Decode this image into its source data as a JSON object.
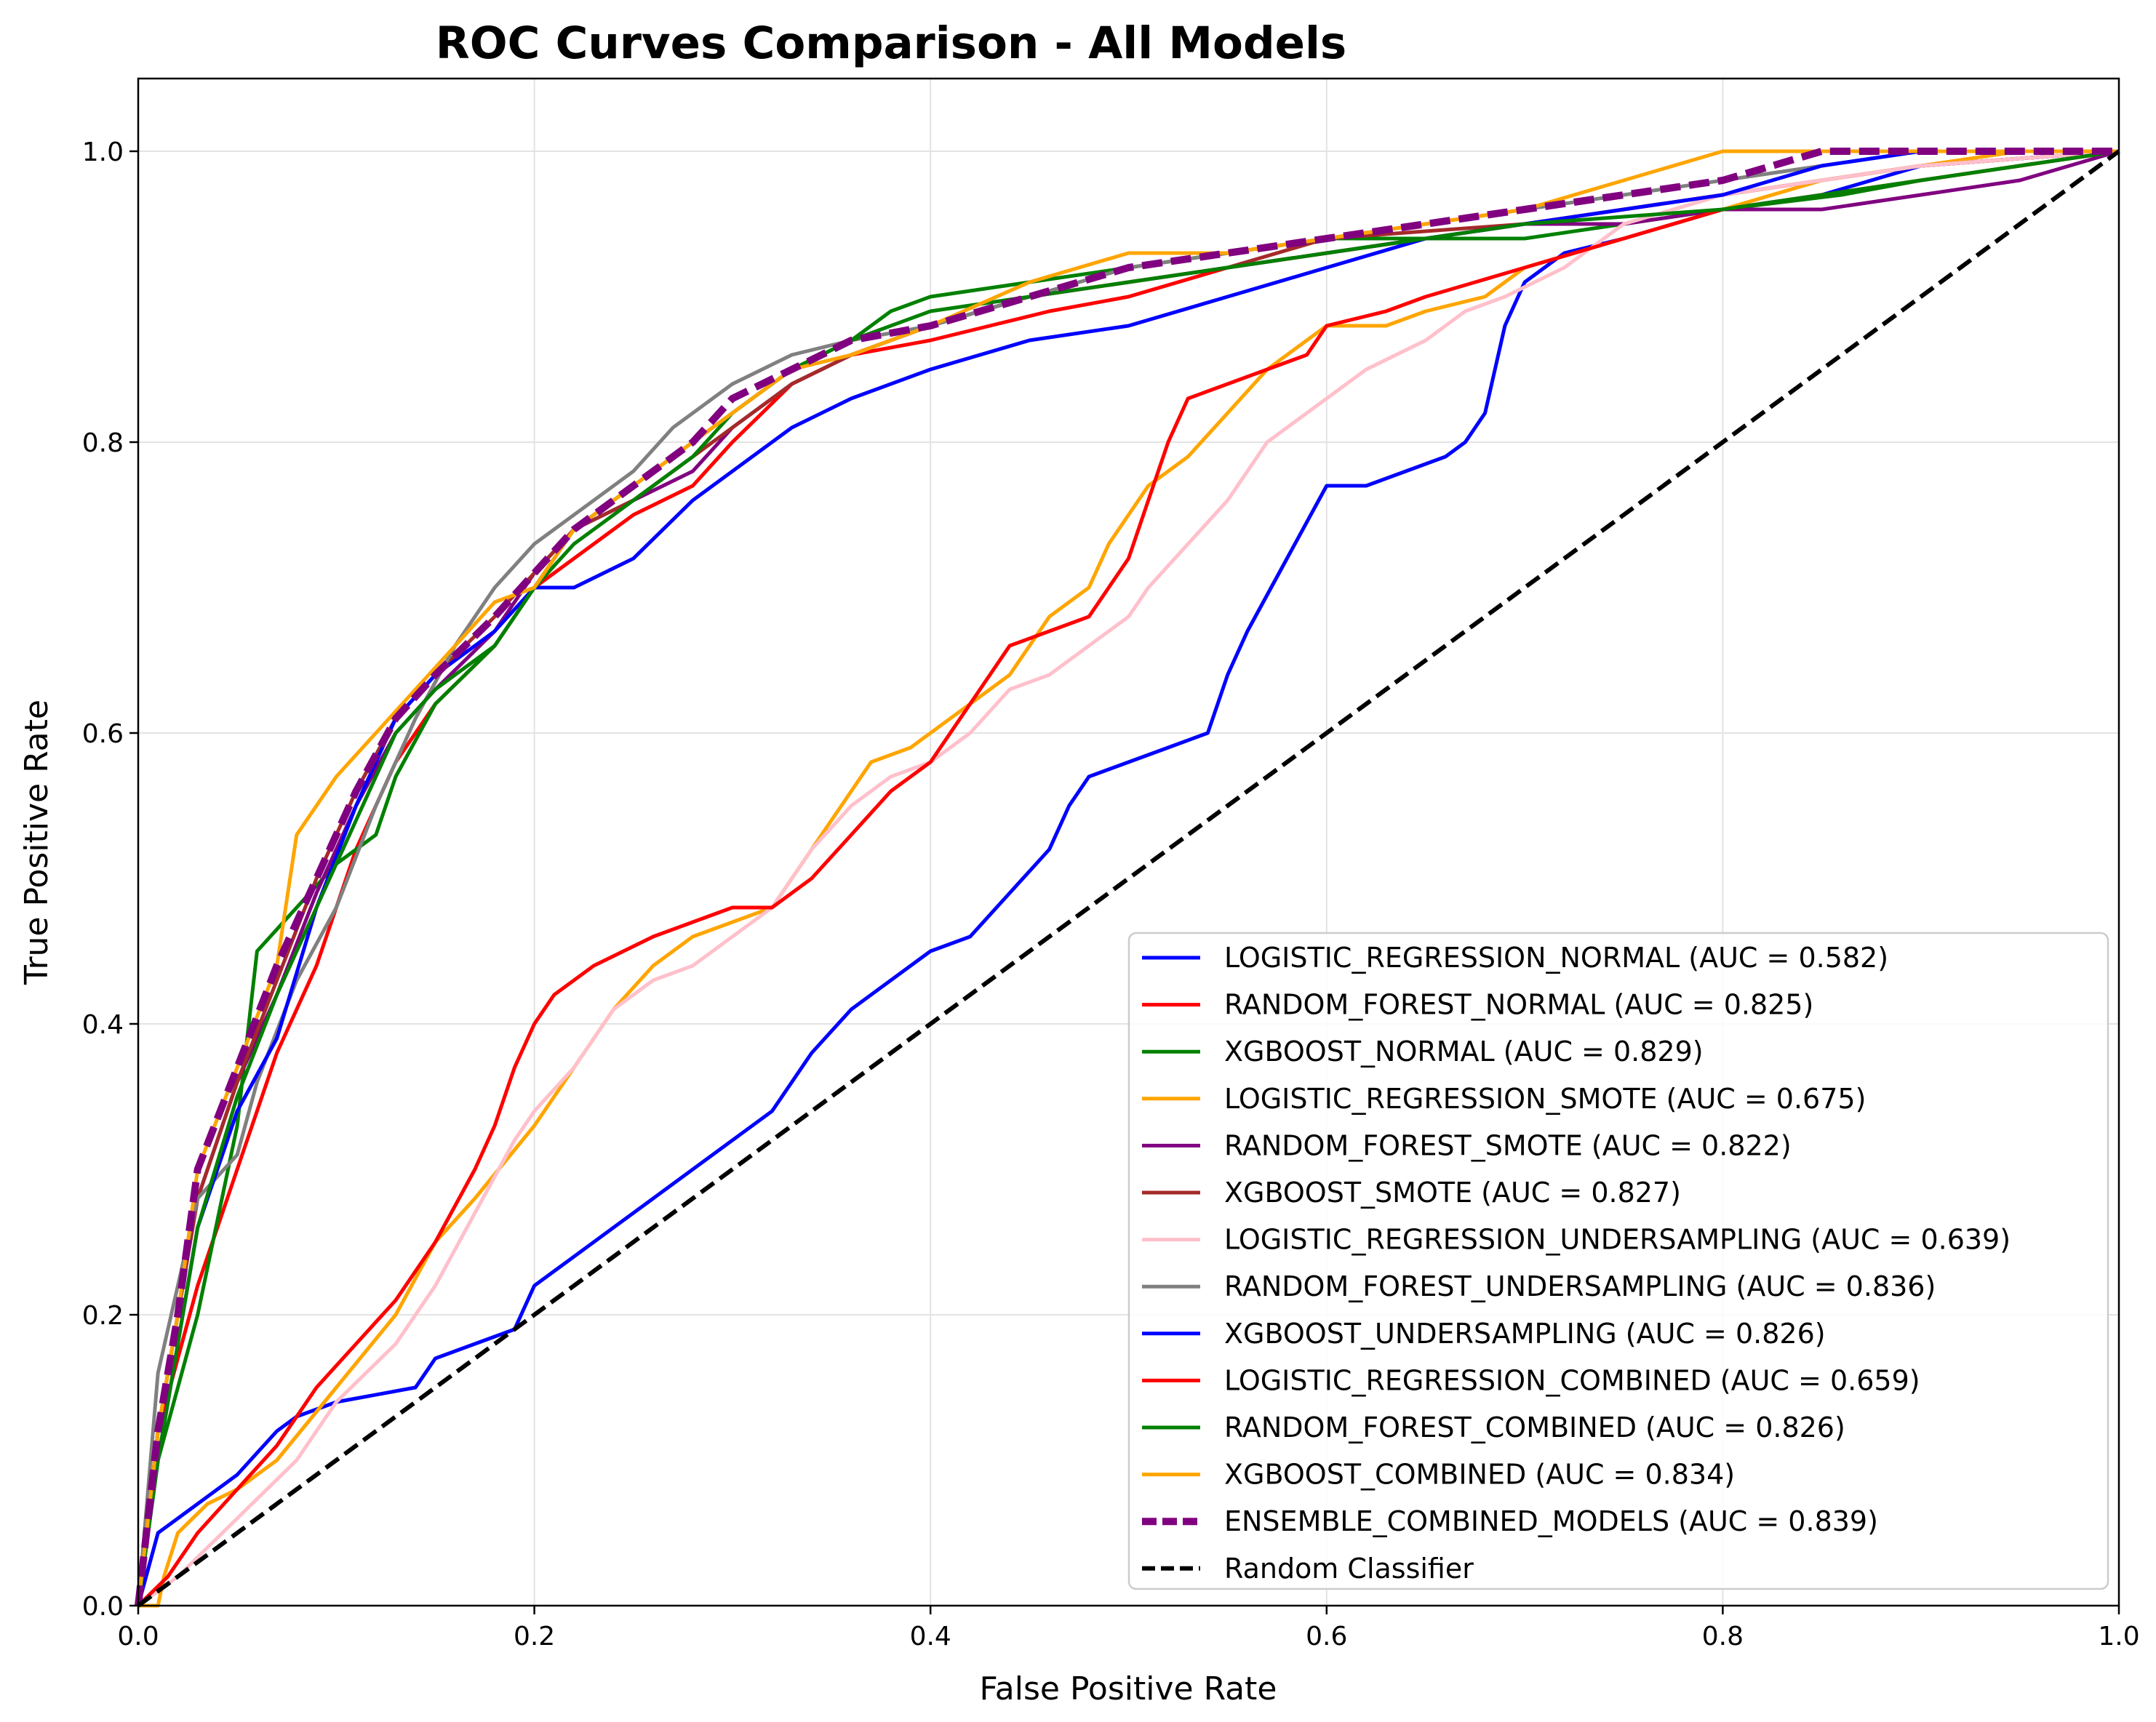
{
  "chart_data": {
    "type": "line",
    "title": "ROC Curves Comparison - All Models",
    "xlabel": "False Positive Rate",
    "ylabel": "True Positive Rate",
    "xlim": [
      0,
      1
    ],
    "ylim": [
      0,
      1.05
    ],
    "xticks": [
      0.0,
      0.2,
      0.4,
      0.6,
      0.8,
      1.0
    ],
    "yticks": [
      0.0,
      0.2,
      0.4,
      0.6,
      0.8,
      1.0
    ],
    "xtick_labels": [
      "0.0",
      "0.2",
      "0.4",
      "0.6",
      "0.8",
      "1.0"
    ],
    "ytick_labels": [
      "0.0",
      "0.2",
      "0.4",
      "0.6",
      "0.8",
      "1.0"
    ],
    "grid": true,
    "legend_position": "lower-right",
    "series": [
      {
        "name": "LOGISTIC_REGRESSION_NORMAL (AUC = 0.582)",
        "color": "#0000ff",
        "dash": "solid",
        "x": [
          0,
          0.01,
          0.02,
          0.03,
          0.05,
          0.07,
          0.08,
          0.1,
          0.14,
          0.15,
          0.17,
          0.19,
          0.2,
          0.22,
          0.24,
          0.26,
          0.28,
          0.3,
          0.32,
          0.33,
          0.34,
          0.36,
          0.38,
          0.4,
          0.42,
          0.44,
          0.46,
          0.47,
          0.48,
          0.5,
          0.52,
          0.54,
          0.55,
          0.56,
          0.58,
          0.6,
          0.62,
          0.64,
          0.66,
          0.67,
          0.68,
          0.69,
          0.7,
          0.72,
          0.75,
          0.8,
          0.85,
          0.9,
          1.0
        ],
        "y": [
          0,
          0.05,
          0.06,
          0.07,
          0.09,
          0.12,
          0.13,
          0.14,
          0.15,
          0.17,
          0.18,
          0.19,
          0.22,
          0.24,
          0.26,
          0.28,
          0.3,
          0.32,
          0.34,
          0.36,
          0.38,
          0.41,
          0.43,
          0.45,
          0.46,
          0.49,
          0.52,
          0.55,
          0.57,
          0.58,
          0.59,
          0.6,
          0.64,
          0.67,
          0.72,
          0.77,
          0.77,
          0.78,
          0.79,
          0.8,
          0.82,
          0.88,
          0.91,
          0.93,
          0.94,
          0.96,
          0.97,
          0.99,
          1.0
        ]
      },
      {
        "name": "RANDOM_FOREST_NORMAL (AUC = 0.825)",
        "color": "#ff0000",
        "dash": "solid",
        "x": [
          0,
          0.01,
          0.02,
          0.03,
          0.05,
          0.07,
          0.09,
          0.11,
          0.13,
          0.15,
          0.18,
          0.2,
          0.22,
          0.25,
          0.28,
          0.3,
          0.33,
          0.36,
          0.4,
          0.43,
          0.46,
          0.5,
          0.55,
          0.6,
          0.65,
          0.7,
          0.75,
          0.8,
          0.85,
          0.9,
          1.0
        ],
        "y": [
          0,
          0.12,
          0.17,
          0.22,
          0.3,
          0.38,
          0.44,
          0.52,
          0.58,
          0.62,
          0.66,
          0.7,
          0.72,
          0.75,
          0.77,
          0.8,
          0.84,
          0.86,
          0.87,
          0.88,
          0.89,
          0.9,
          0.92,
          0.93,
          0.94,
          0.95,
          0.96,
          0.97,
          0.98,
          0.99,
          1.0
        ]
      },
      {
        "name": "XGBOOST_NORMAL (AUC = 0.829)",
        "color": "#008000",
        "dash": "solid",
        "x": [
          0,
          0.01,
          0.02,
          0.03,
          0.05,
          0.06,
          0.08,
          0.1,
          0.12,
          0.13,
          0.15,
          0.18,
          0.2,
          0.22,
          0.24,
          0.26,
          0.28,
          0.3,
          0.33,
          0.36,
          0.38,
          0.4,
          0.45,
          0.5,
          0.55,
          0.6,
          0.7,
          0.75,
          0.8,
          0.86,
          0.9,
          1.0
        ],
        "y": [
          0,
          0.1,
          0.15,
          0.2,
          0.33,
          0.45,
          0.48,
          0.51,
          0.53,
          0.57,
          0.62,
          0.66,
          0.7,
          0.74,
          0.76,
          0.78,
          0.8,
          0.82,
          0.85,
          0.87,
          0.89,
          0.9,
          0.91,
          0.92,
          0.93,
          0.94,
          0.94,
          0.95,
          0.96,
          0.97,
          0.98,
          1.0
        ]
      },
      {
        "name": "LOGISTIC_REGRESSION_SMOTE (AUC = 0.675)",
        "color": "#ffa500",
        "dash": "solid",
        "x": [
          0,
          0.01,
          0.013,
          0.02,
          0.035,
          0.05,
          0.07,
          0.1,
          0.13,
          0.15,
          0.17,
          0.2,
          0.22,
          0.24,
          0.26,
          0.28,
          0.3,
          0.32,
          0.33,
          0.34,
          0.36,
          0.37,
          0.39,
          0.4,
          0.42,
          0.44,
          0.45,
          0.46,
          0.48,
          0.49,
          0.5,
          0.51,
          0.53,
          0.55,
          0.57,
          0.6,
          0.63,
          0.65,
          0.68,
          0.7,
          0.75,
          0.8,
          0.85,
          0.9,
          0.95,
          1.0
        ],
        "y": [
          0,
          0.0,
          0.02,
          0.05,
          0.07,
          0.08,
          0.1,
          0.15,
          0.2,
          0.25,
          0.28,
          0.33,
          0.37,
          0.41,
          0.44,
          0.46,
          0.47,
          0.48,
          0.5,
          0.52,
          0.56,
          0.58,
          0.59,
          0.6,
          0.62,
          0.64,
          0.66,
          0.68,
          0.7,
          0.73,
          0.75,
          0.77,
          0.79,
          0.82,
          0.85,
          0.88,
          0.88,
          0.89,
          0.9,
          0.92,
          0.94,
          0.96,
          0.98,
          0.99,
          1.0,
          1.0
        ]
      },
      {
        "name": "RANDOM_FOREST_SMOTE (AUC = 0.822)",
        "color": "#800080",
        "dash": "solid",
        "x": [
          0,
          0.01,
          0.02,
          0.03,
          0.05,
          0.07,
          0.09,
          0.11,
          0.13,
          0.15,
          0.18,
          0.2,
          0.22,
          0.25,
          0.28,
          0.3,
          0.33,
          0.36,
          0.4,
          0.45,
          0.5,
          0.55,
          0.6,
          0.65,
          0.7,
          0.75,
          0.8,
          0.85,
          0.9,
          0.95,
          1.0
        ],
        "y": [
          0,
          0.12,
          0.2,
          0.28,
          0.36,
          0.42,
          0.49,
          0.55,
          0.6,
          0.63,
          0.67,
          0.71,
          0.74,
          0.76,
          0.78,
          0.81,
          0.84,
          0.86,
          0.88,
          0.9,
          0.91,
          0.92,
          0.93,
          0.94,
          0.95,
          0.95,
          0.96,
          0.96,
          0.97,
          0.98,
          1.0
        ]
      },
      {
        "name": "XGBOOST_SMOTE (AUC = 0.827)",
        "color": "#a52a2a",
        "dash": "solid",
        "x": [
          0,
          0.01,
          0.02,
          0.03,
          0.05,
          0.07,
          0.09,
          0.11,
          0.13,
          0.15,
          0.18,
          0.2,
          0.22,
          0.25,
          0.28,
          0.3,
          0.33,
          0.36,
          0.4,
          0.45,
          0.5,
          0.55,
          0.6,
          0.7,
          0.8,
          0.9,
          1.0
        ],
        "y": [
          0,
          0.12,
          0.2,
          0.28,
          0.36,
          0.43,
          0.5,
          0.56,
          0.61,
          0.64,
          0.68,
          0.71,
          0.74,
          0.76,
          0.79,
          0.81,
          0.84,
          0.86,
          0.88,
          0.9,
          0.91,
          0.92,
          0.94,
          0.95,
          0.97,
          0.99,
          1.0
        ]
      },
      {
        "name": "LOGISTIC_REGRESSION_UNDERSAMPLING (AUC = 0.639)",
        "color": "#ffc0cb",
        "dash": "solid",
        "x": [
          0,
          0.02,
          0.05,
          0.08,
          0.1,
          0.13,
          0.15,
          0.17,
          0.19,
          0.2,
          0.22,
          0.24,
          0.26,
          0.28,
          0.3,
          0.32,
          0.34,
          0.36,
          0.38,
          0.4,
          0.42,
          0.44,
          0.46,
          0.48,
          0.5,
          0.51,
          0.53,
          0.55,
          0.57,
          0.6,
          0.62,
          0.65,
          0.67,
          0.69,
          0.72,
          0.75,
          0.8,
          0.85,
          0.9,
          1.0
        ],
        "y": [
          0,
          0.02,
          0.06,
          0.1,
          0.14,
          0.18,
          0.22,
          0.27,
          0.32,
          0.34,
          0.37,
          0.41,
          0.43,
          0.44,
          0.46,
          0.48,
          0.52,
          0.55,
          0.57,
          0.58,
          0.6,
          0.63,
          0.64,
          0.66,
          0.68,
          0.7,
          0.73,
          0.76,
          0.8,
          0.83,
          0.85,
          0.87,
          0.89,
          0.9,
          0.92,
          0.95,
          0.97,
          0.98,
          0.99,
          1.0
        ]
      },
      {
        "name": "RANDOM_FOREST_UNDERSAMPLING (AUC = 0.836)",
        "color": "#808080",
        "dash": "solid",
        "x": [
          0,
          0.01,
          0.02,
          0.03,
          0.05,
          0.06,
          0.08,
          0.1,
          0.12,
          0.14,
          0.16,
          0.18,
          0.2,
          0.22,
          0.25,
          0.27,
          0.3,
          0.33,
          0.36,
          0.4,
          0.45,
          0.5,
          0.55,
          0.6,
          0.65,
          0.7,
          0.75,
          0.8,
          0.85,
          0.9,
          1.0
        ],
        "y": [
          0,
          0.16,
          0.22,
          0.28,
          0.31,
          0.36,
          0.43,
          0.48,
          0.55,
          0.61,
          0.66,
          0.7,
          0.73,
          0.75,
          0.78,
          0.81,
          0.84,
          0.86,
          0.87,
          0.88,
          0.9,
          0.92,
          0.93,
          0.94,
          0.95,
          0.96,
          0.97,
          0.98,
          0.99,
          1.0,
          1.0
        ]
      },
      {
        "name": "XGBOOST_UNDERSAMPLING (AUC = 0.826)",
        "color": "#0000ff",
        "dash": "solid",
        "x": [
          0,
          0.01,
          0.02,
          0.03,
          0.05,
          0.07,
          0.09,
          0.11,
          0.13,
          0.15,
          0.18,
          0.2,
          0.22,
          0.25,
          0.28,
          0.3,
          0.33,
          0.36,
          0.4,
          0.45,
          0.5,
          0.55,
          0.6,
          0.65,
          0.7,
          0.75,
          0.8,
          0.85,
          0.9,
          1.0
        ],
        "y": [
          0,
          0.1,
          0.18,
          0.26,
          0.34,
          0.39,
          0.48,
          0.55,
          0.61,
          0.64,
          0.67,
          0.7,
          0.7,
          0.72,
          0.76,
          0.78,
          0.81,
          0.83,
          0.85,
          0.87,
          0.88,
          0.9,
          0.92,
          0.94,
          0.95,
          0.96,
          0.97,
          0.99,
          1.0,
          1.0
        ]
      },
      {
        "name": "LOGISTIC_REGRESSION_COMBINED (AUC = 0.659)",
        "color": "#ff0000",
        "dash": "solid",
        "x": [
          0,
          0.015,
          0.03,
          0.05,
          0.07,
          0.09,
          0.11,
          0.13,
          0.15,
          0.17,
          0.18,
          0.19,
          0.2,
          0.21,
          0.23,
          0.26,
          0.28,
          0.3,
          0.32,
          0.34,
          0.36,
          0.38,
          0.4,
          0.42,
          0.44,
          0.46,
          0.48,
          0.5,
          0.51,
          0.52,
          0.53,
          0.55,
          0.57,
          0.59,
          0.6,
          0.63,
          0.65,
          0.7,
          0.75,
          0.8,
          0.85,
          0.9,
          1.0
        ],
        "y": [
          0,
          0.02,
          0.05,
          0.08,
          0.11,
          0.15,
          0.18,
          0.21,
          0.25,
          0.3,
          0.33,
          0.37,
          0.4,
          0.42,
          0.44,
          0.46,
          0.47,
          0.48,
          0.48,
          0.5,
          0.53,
          0.56,
          0.58,
          0.62,
          0.66,
          0.67,
          0.68,
          0.72,
          0.76,
          0.8,
          0.83,
          0.84,
          0.85,
          0.86,
          0.88,
          0.89,
          0.9,
          0.92,
          0.94,
          0.96,
          0.97,
          0.98,
          1.0
        ]
      },
      {
        "name": "RANDOM_FOREST_COMBINED (AUC = 0.826)",
        "color": "#008000",
        "dash": "solid",
        "x": [
          0,
          0.01,
          0.02,
          0.03,
          0.05,
          0.07,
          0.09,
          0.11,
          0.13,
          0.15,
          0.18,
          0.2,
          0.22,
          0.25,
          0.28,
          0.3,
          0.33,
          0.36,
          0.4,
          0.45,
          0.5,
          0.55,
          0.6,
          0.7,
          0.8,
          0.9,
          1.0
        ],
        "y": [
          0,
          0.1,
          0.18,
          0.26,
          0.35,
          0.42,
          0.48,
          0.54,
          0.6,
          0.63,
          0.66,
          0.7,
          0.73,
          0.76,
          0.79,
          0.82,
          0.85,
          0.87,
          0.89,
          0.9,
          0.91,
          0.92,
          0.93,
          0.95,
          0.96,
          0.98,
          1.0
        ]
      },
      {
        "name": "XGBOOST_COMBINED (AUC = 0.834)",
        "color": "#ffa500",
        "dash": "solid",
        "x": [
          0,
          0.01,
          0.02,
          0.03,
          0.05,
          0.07,
          0.08,
          0.1,
          0.12,
          0.14,
          0.16,
          0.18,
          0.2,
          0.22,
          0.25,
          0.28,
          0.3,
          0.33,
          0.36,
          0.4,
          0.45,
          0.5,
          0.55,
          0.6,
          0.65,
          0.7,
          0.75,
          0.8,
          0.9,
          1.0
        ],
        "y": [
          0,
          0.12,
          0.2,
          0.3,
          0.37,
          0.44,
          0.53,
          0.57,
          0.6,
          0.63,
          0.66,
          0.69,
          0.7,
          0.74,
          0.77,
          0.8,
          0.82,
          0.85,
          0.86,
          0.88,
          0.91,
          0.93,
          0.93,
          0.94,
          0.95,
          0.96,
          0.98,
          1.0,
          1.0,
          1.0
        ]
      },
      {
        "name": "ENSEMBLE_COMBINED_MODELS (AUC = 0.839)",
        "color": "#800080",
        "dash": "dashed",
        "x": [
          0,
          0.01,
          0.02,
          0.03,
          0.05,
          0.07,
          0.09,
          0.11,
          0.13,
          0.15,
          0.18,
          0.2,
          0.22,
          0.25,
          0.28,
          0.3,
          0.33,
          0.36,
          0.4,
          0.45,
          0.5,
          0.55,
          0.6,
          0.65,
          0.7,
          0.75,
          0.8,
          0.85,
          0.9,
          1.0
        ],
        "y": [
          0,
          0.12,
          0.2,
          0.3,
          0.37,
          0.44,
          0.5,
          0.56,
          0.61,
          0.64,
          0.68,
          0.71,
          0.74,
          0.77,
          0.8,
          0.83,
          0.85,
          0.87,
          0.88,
          0.9,
          0.92,
          0.93,
          0.94,
          0.95,
          0.96,
          0.97,
          0.98,
          1.0,
          1.0,
          1.0
        ]
      },
      {
        "name": "Random Classifier",
        "color": "#000000",
        "dash": "dashed",
        "x": [
          0,
          1
        ],
        "y": [
          0,
          1
        ]
      }
    ]
  }
}
